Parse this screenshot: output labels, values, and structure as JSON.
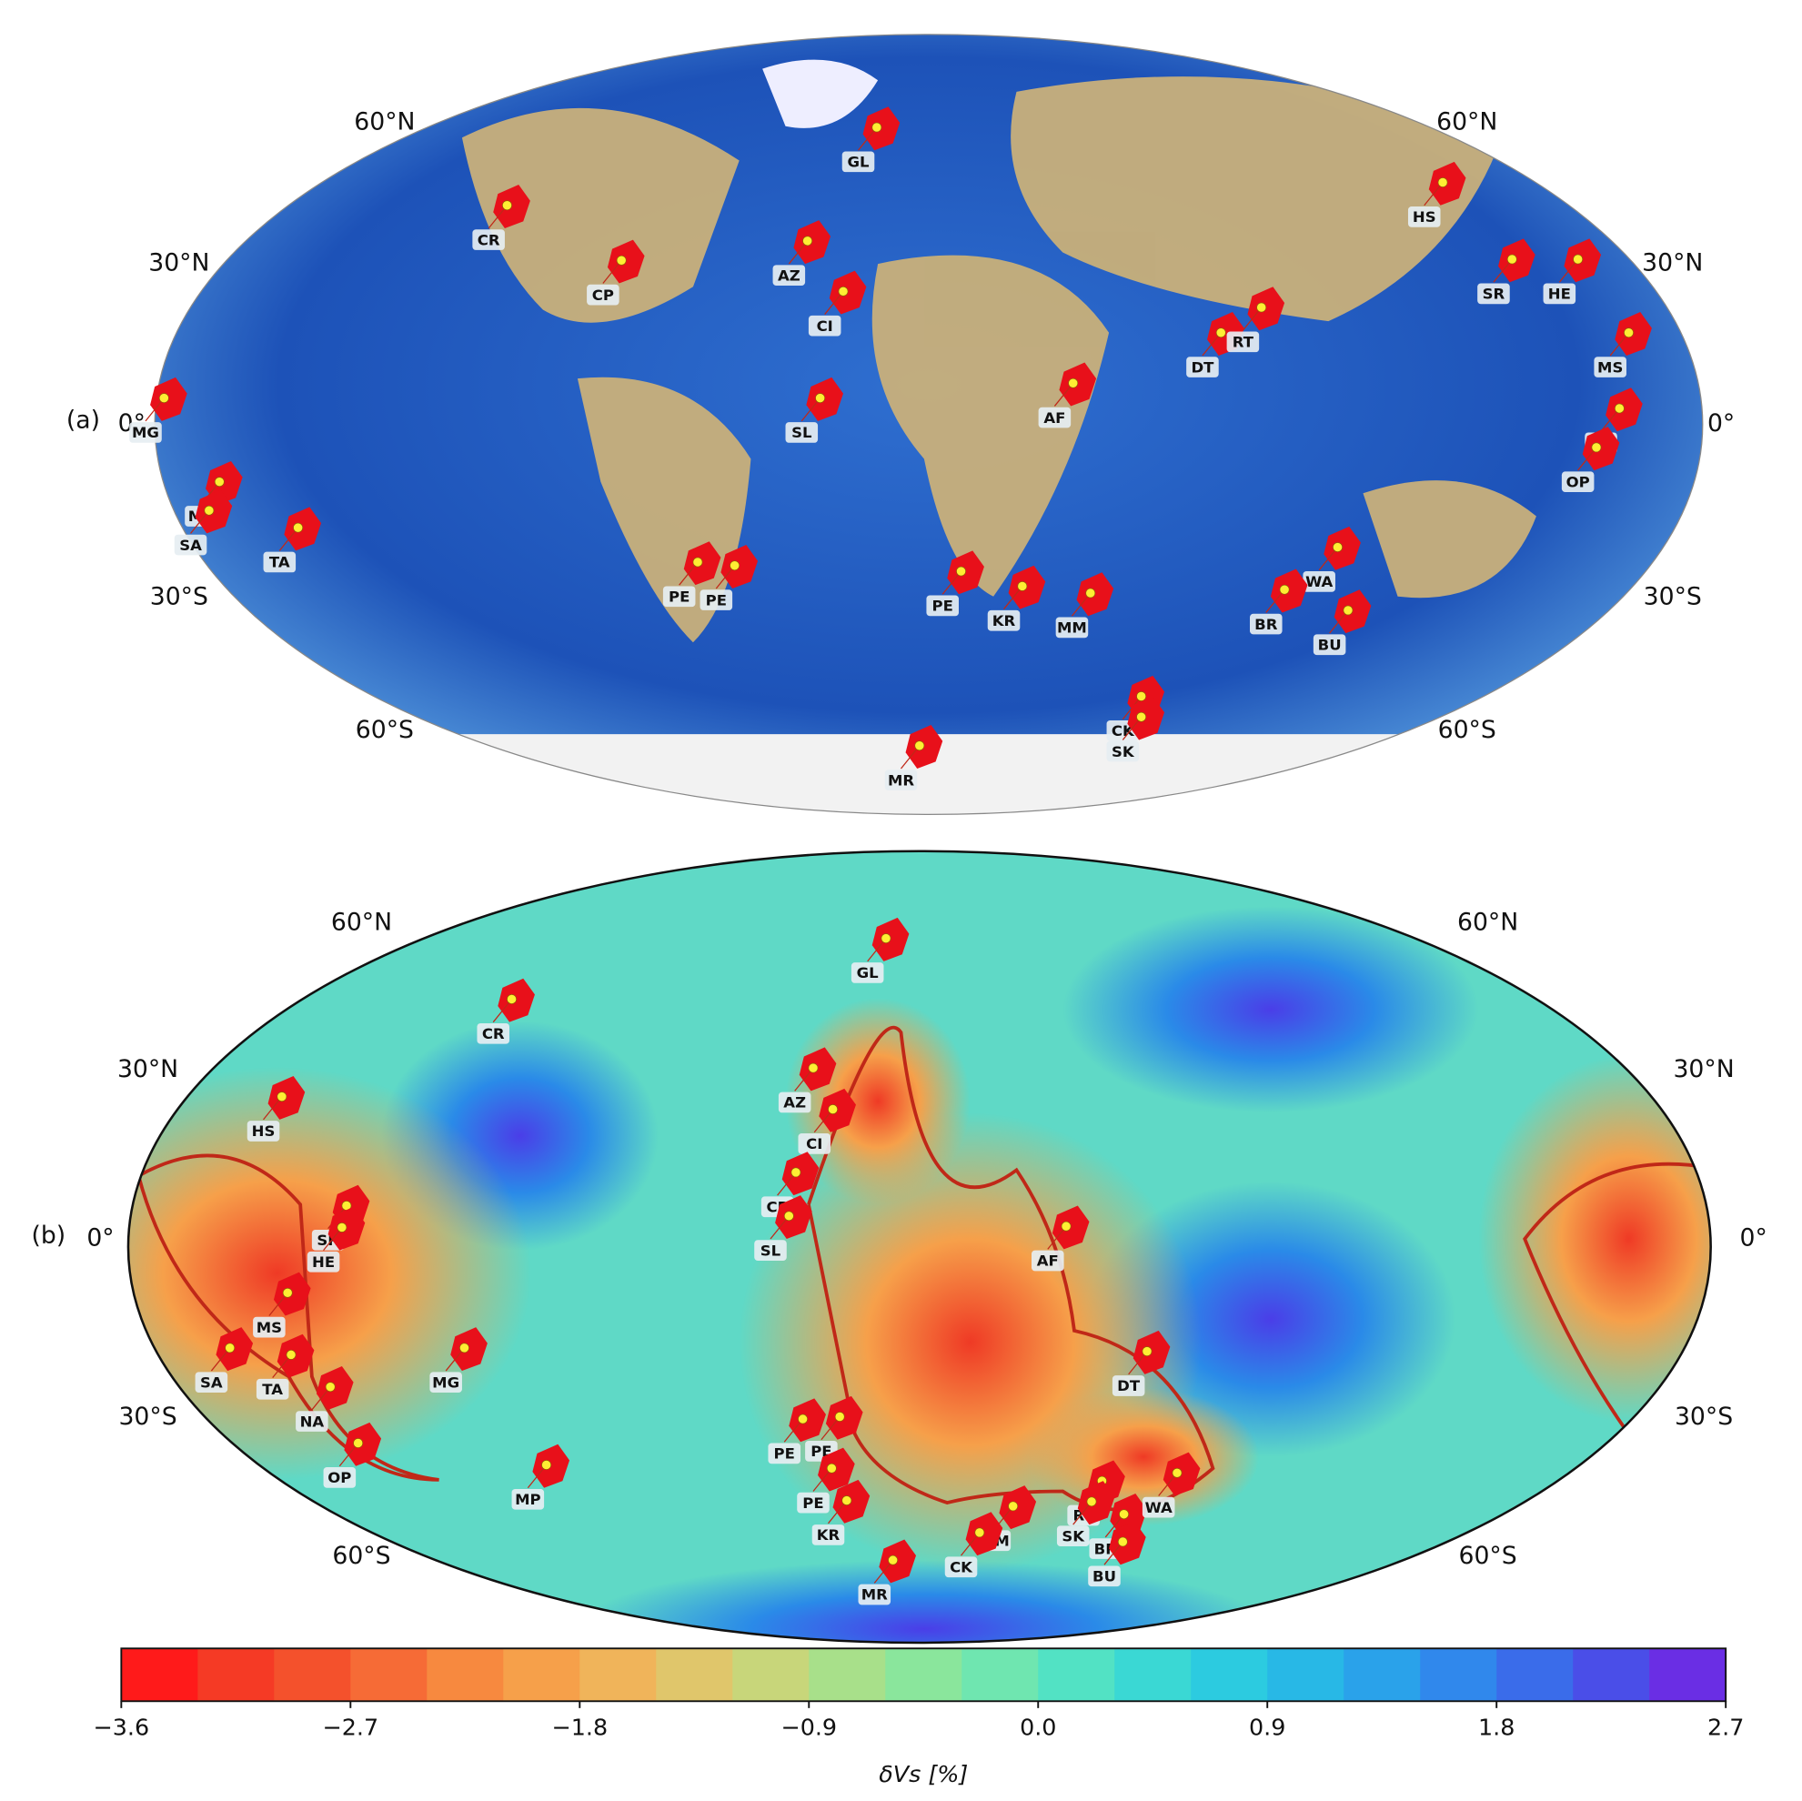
{
  "panels": [
    {
      "label": "(a)",
      "lat_labels": [
        "60°N",
        "30°N",
        "0°",
        "30°S",
        "60°S"
      ],
      "sites": [
        "GL",
        "CR",
        "CP",
        "AZ",
        "CI",
        "SL",
        "MG",
        "MP",
        "SA",
        "TA",
        "PE",
        "PE",
        "PE",
        "KR",
        "MM",
        "AF",
        "DT",
        "RT",
        "HS",
        "SR",
        "HE",
        "MS",
        "NA",
        "OP",
        "WA",
        "BR",
        "BU",
        "CK",
        "SK",
        "MR"
      ]
    },
    {
      "label": "(b)",
      "lat_labels": [
        "60°N",
        "30°N",
        "0°",
        "30°S",
        "60°S"
      ],
      "sites": [
        "GL",
        "CR",
        "HS",
        "SR",
        "HE",
        "MS",
        "SA",
        "TA",
        "MG",
        "NA",
        "OP",
        "MP",
        "AZ",
        "CI",
        "CP",
        "SL",
        "AF",
        "DT",
        "PE",
        "PE",
        "PE",
        "KR",
        "MM",
        "CK",
        "RT",
        "SK",
        "BR",
        "WA",
        "BU",
        "MR"
      ]
    }
  ],
  "colorbar": {
    "label": "δVs [%]",
    "lim": [
      -3.6,
      2.7
    ],
    "ticks": [
      {
        "value": -3.6,
        "label": "−3.6"
      },
      {
        "value": -2.7,
        "label": "−2.7"
      },
      {
        "value": -1.8,
        "label": "−1.8"
      },
      {
        "value": -0.9,
        "label": "−0.9"
      },
      {
        "value": 0.0,
        "label": "0.0"
      },
      0.9,
      1.8,
      2.7
    ],
    "colors": [
      "#ff1a1a",
      "#f53a25",
      "#f4512c",
      "#f66b36",
      "#f7893f",
      "#f6a04a",
      "#f0b45a",
      "#e0c66b",
      "#c8d67a",
      "#a8e08a",
      "#8ae69c",
      "#6fe6b0",
      "#52e2c4",
      "#3ad8d4",
      "#2ccbe0",
      "#28b8e6",
      "#2aa2ea",
      "#3088ec",
      "#3a6cea",
      "#4a4ee8",
      "#6a2ee4"
    ]
  }
}
